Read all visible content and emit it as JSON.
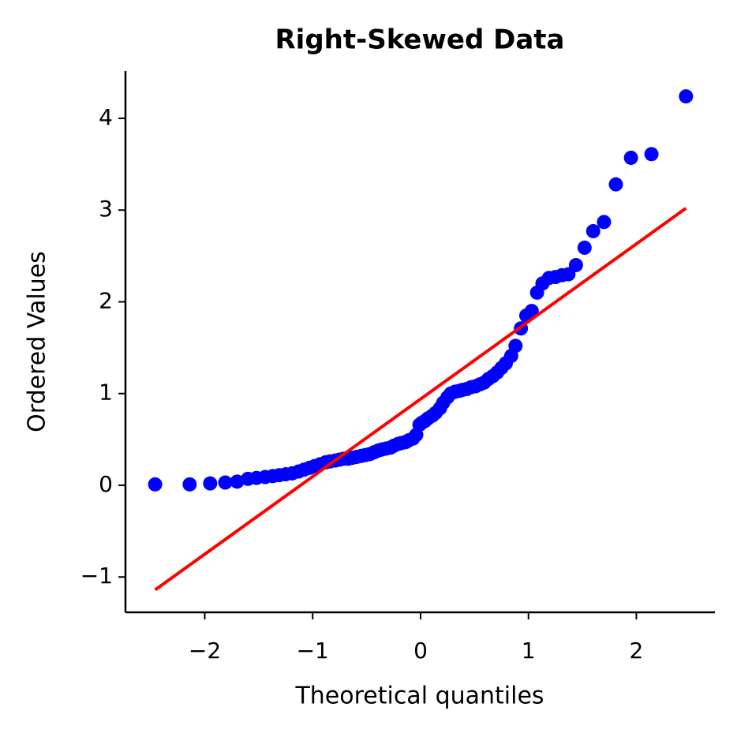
{
  "chart_data": {
    "type": "scatter",
    "title": "Right-Skewed Data",
    "x_label": "Theoretical quantiles",
    "y_label": "Ordered Values",
    "xlim": [
      -2.735,
      2.728
    ],
    "ylim": [
      -1.385,
      4.516
    ],
    "xticks": [
      {
        "value": -2,
        "label": "−2"
      },
      {
        "value": -1,
        "label": "−1"
      },
      0,
      1,
      2
    ],
    "yticks": [
      {
        "value": -1,
        "label": "−1"
      },
      0,
      1,
      2,
      3,
      4
    ],
    "points": {
      "color": "#0000ff",
      "x": [
        -2.46,
        -2.14,
        -1.95,
        -1.81,
        -1.7,
        -1.6,
        -1.52,
        -1.44,
        -1.37,
        -1.31,
        -1.25,
        -1.19,
        -1.13,
        -1.08,
        -1.03,
        -0.98,
        -0.93,
        -0.88,
        -0.84,
        -0.79,
        -0.75,
        -0.71,
        -0.67,
        -0.63,
        -0.59,
        -0.55,
        -0.51,
        -0.47,
        -0.43,
        -0.39,
        -0.36,
        -0.32,
        -0.28,
        -0.25,
        -0.21,
        -0.18,
        -0.14,
        -0.11,
        -0.07,
        -0.04,
        -0.01,
        0.01,
        0.04,
        0.07,
        0.11,
        0.14,
        0.18,
        0.21,
        0.25,
        0.28,
        0.32,
        0.36,
        0.39,
        0.43,
        0.47,
        0.51,
        0.55,
        0.59,
        0.63,
        0.67,
        0.71,
        0.75,
        0.79,
        0.84,
        0.88,
        0.93,
        0.98,
        1.03,
        1.08,
        1.13,
        1.19,
        1.25,
        1.31,
        1.37,
        1.44,
        1.52,
        1.6,
        1.7,
        1.81,
        1.95,
        2.14,
        2.46
      ],
      "y": [
        0.01,
        0.01,
        0.02,
        0.03,
        0.04,
        0.07,
        0.08,
        0.09,
        0.1,
        0.11,
        0.12,
        0.13,
        0.15,
        0.17,
        0.19,
        0.21,
        0.23,
        0.25,
        0.26,
        0.27,
        0.28,
        0.29,
        0.29,
        0.3,
        0.31,
        0.32,
        0.33,
        0.34,
        0.36,
        0.38,
        0.39,
        0.4,
        0.41,
        0.43,
        0.45,
        0.46,
        0.47,
        0.49,
        0.51,
        0.55,
        0.66,
        0.68,
        0.7,
        0.73,
        0.76,
        0.79,
        0.84,
        0.9,
        0.96,
        1.0,
        1.02,
        1.03,
        1.04,
        1.05,
        1.07,
        1.08,
        1.1,
        1.12,
        1.16,
        1.19,
        1.23,
        1.28,
        1.33,
        1.41,
        1.52,
        1.71,
        1.85,
        1.9,
        2.1,
        2.2,
        2.26,
        2.27,
        2.29,
        2.3,
        2.4,
        2.59,
        2.77,
        2.87,
        3.28,
        3.57,
        3.61,
        4.24
      ]
    },
    "fit_line": {
      "color": "#ff0000",
      "x": [
        -2.46,
        2.46
      ],
      "y": [
        -1.14,
        3.02
      ]
    }
  }
}
